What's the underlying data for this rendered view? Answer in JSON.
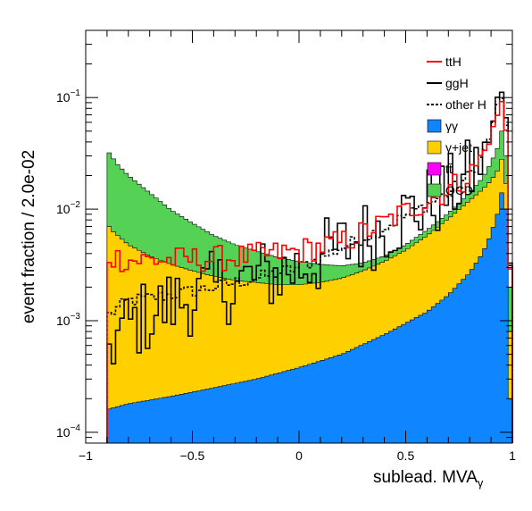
{
  "chart_data": {
    "type": "histogram",
    "xlabel": "sublead. MVA",
    "xlabel_subscript": "γ",
    "ylabel": "event fraction / 2.0e-02",
    "xlim": [
      -1.0,
      1.0
    ],
    "ylim": [
      8e-05,
      0.4
    ],
    "y_scale": "log",
    "x_ticks": [
      {
        "value": -1.0,
        "label": "−1"
      },
      {
        "value": -0.5,
        "label": "−0.5"
      },
      {
        "value": 0.0,
        "label": "0"
      },
      {
        "value": 0.5,
        "label": "0.5"
      },
      {
        "value": 1.0,
        "label": "1"
      }
    ],
    "y_ticks": [
      {
        "value": 0.0001,
        "mantissa": "10",
        "exp": "−4"
      },
      {
        "value": 0.001,
        "mantissa": "10",
        "exp": "−3"
      },
      {
        "value": 0.01,
        "mantissa": "10",
        "exp": "−2"
      },
      {
        "value": 0.1,
        "mantissa": "10",
        "exp": "−1"
      }
    ],
    "x_range": [
      -0.9,
      1.0
    ],
    "bin_width": 0.02,
    "stacked_knots": {
      "gg": [
        [
          -0.9,
          0.00016
        ],
        [
          -0.8,
          0.00018
        ],
        [
          -0.6,
          0.00021
        ],
        [
          -0.4,
          0.00025
        ],
        [
          -0.2,
          0.0003
        ],
        [
          0.0,
          0.00038
        ],
        [
          0.2,
          0.0005
        ],
        [
          0.4,
          0.00075
        ],
        [
          0.6,
          0.0012
        ],
        [
          0.7,
          0.0017
        ],
        [
          0.8,
          0.0027
        ],
        [
          0.86,
          0.004
        ],
        [
          0.9,
          0.006
        ],
        [
          0.93,
          0.009
        ],
        [
          0.95,
          0.014
        ],
        [
          0.97,
          0.01
        ],
        [
          0.99,
          0.0002
        ]
      ],
      "gjet": [
        [
          -0.9,
          0.0075
        ],
        [
          -0.88,
          0.0065
        ],
        [
          -0.8,
          0.0048
        ],
        [
          -0.7,
          0.0038
        ],
        [
          -0.6,
          0.0032
        ],
        [
          -0.5,
          0.0028
        ],
        [
          -0.4,
          0.0025
        ],
        [
          -0.3,
          0.0023
        ],
        [
          -0.2,
          0.0022
        ],
        [
          -0.1,
          0.0021
        ],
        [
          0.0,
          0.0021
        ],
        [
          0.1,
          0.0022
        ],
        [
          0.2,
          0.0024
        ],
        [
          0.3,
          0.0028
        ],
        [
          0.4,
          0.0034
        ],
        [
          0.5,
          0.0043
        ],
        [
          0.6,
          0.0058
        ],
        [
          0.7,
          0.0082
        ],
        [
          0.8,
          0.012
        ],
        [
          0.86,
          0.015
        ],
        [
          0.9,
          0.018
        ],
        [
          0.93,
          0.022
        ],
        [
          0.95,
          0.028
        ],
        [
          0.97,
          0.017
        ],
        [
          0.99,
          0.0008
        ]
      ],
      "tt": [
        [
          -0.9,
          0.0075
        ],
        [
          -0.88,
          0.0065
        ],
        [
          -0.8,
          0.0048
        ],
        [
          -0.7,
          0.0038
        ],
        [
          -0.6,
          0.0032
        ],
        [
          -0.5,
          0.0028
        ],
        [
          -0.4,
          0.0025
        ],
        [
          -0.3,
          0.0023
        ],
        [
          -0.2,
          0.0022
        ],
        [
          -0.1,
          0.0021
        ],
        [
          0.0,
          0.0021
        ],
        [
          0.1,
          0.0022
        ],
        [
          0.2,
          0.0024
        ],
        [
          0.3,
          0.0028
        ],
        [
          0.4,
          0.0034
        ],
        [
          0.5,
          0.0043
        ],
        [
          0.6,
          0.0058
        ],
        [
          0.7,
          0.0082
        ],
        [
          0.8,
          0.012
        ],
        [
          0.86,
          0.015
        ],
        [
          0.9,
          0.018
        ],
        [
          0.93,
          0.022
        ],
        [
          0.95,
          0.028
        ],
        [
          0.97,
          0.017
        ],
        [
          0.99,
          0.0008
        ]
      ],
      "qcd": [
        [
          -0.9,
          0.034
        ],
        [
          -0.88,
          0.03
        ],
        [
          -0.85,
          0.025
        ],
        [
          -0.8,
          0.02
        ],
        [
          -0.7,
          0.014
        ],
        [
          -0.6,
          0.0098
        ],
        [
          -0.5,
          0.0075
        ],
        [
          -0.4,
          0.0058
        ],
        [
          -0.3,
          0.0048
        ],
        [
          -0.2,
          0.0042
        ],
        [
          -0.1,
          0.0037
        ],
        [
          0.0,
          0.0034
        ],
        [
          0.1,
          0.0032
        ],
        [
          0.2,
          0.0031
        ],
        [
          0.3,
          0.0033
        ],
        [
          0.4,
          0.0038
        ],
        [
          0.5,
          0.0048
        ],
        [
          0.6,
          0.0065
        ],
        [
          0.7,
          0.0092
        ],
        [
          0.8,
          0.014
        ],
        [
          0.86,
          0.019
        ],
        [
          0.9,
          0.026
        ],
        [
          0.93,
          0.035
        ],
        [
          0.95,
          0.05
        ],
        [
          0.97,
          0.03
        ],
        [
          0.99,
          0.002
        ]
      ]
    },
    "line_knots": {
      "ttH": [
        [
          -0.9,
          0.0038
        ],
        [
          -0.8,
          0.0035
        ],
        [
          -0.6,
          0.0035
        ],
        [
          -0.4,
          0.0036
        ],
        [
          -0.2,
          0.0038
        ],
        [
          0.0,
          0.0042
        ],
        [
          0.2,
          0.005
        ],
        [
          0.4,
          0.0075
        ],
        [
          0.6,
          0.012
        ],
        [
          0.7,
          0.015
        ],
        [
          0.8,
          0.02
        ],
        [
          0.86,
          0.03
        ],
        [
          0.9,
          0.045
        ],
        [
          0.93,
          0.07
        ],
        [
          0.95,
          0.09
        ],
        [
          0.97,
          0.05
        ],
        [
          0.99,
          0.003
        ]
      ],
      "ggH": [
        [
          -0.9,
          0.0006
        ],
        [
          -0.8,
          0.0009
        ],
        [
          -0.6,
          0.0014
        ],
        [
          -0.4,
          0.0019
        ],
        [
          -0.2,
          0.0024
        ],
        [
          0.0,
          0.003
        ],
        [
          0.2,
          0.0045
        ],
        [
          0.4,
          0.007
        ],
        [
          0.6,
          0.011
        ],
        [
          0.7,
          0.014
        ],
        [
          0.8,
          0.02
        ],
        [
          0.86,
          0.03
        ],
        [
          0.9,
          0.05
        ],
        [
          0.93,
          0.09
        ],
        [
          0.95,
          0.11
        ],
        [
          0.97,
          0.06
        ],
        [
          0.99,
          0.003
        ]
      ],
      "otherH": [
        [
          -0.9,
          0.0011
        ],
        [
          -0.8,
          0.0015
        ],
        [
          -0.6,
          0.0017
        ],
        [
          -0.4,
          0.002
        ],
        [
          -0.2,
          0.0024
        ],
        [
          0.0,
          0.003
        ],
        [
          0.2,
          0.0045
        ],
        [
          0.4,
          0.0068
        ],
        [
          0.6,
          0.011
        ],
        [
          0.7,
          0.014
        ],
        [
          0.8,
          0.02
        ],
        [
          0.86,
          0.03
        ],
        [
          0.9,
          0.048
        ],
        [
          0.93,
          0.085
        ],
        [
          0.95,
          0.1
        ],
        [
          0.97,
          0.055
        ],
        [
          0.99,
          0.003
        ]
      ]
    },
    "line_noise": {
      "ttH": 0.12,
      "ggH": 0.35,
      "otherH": 0.06
    },
    "stack_order": [
      "qcd",
      "tt",
      "gjet",
      "gg"
    ],
    "series": [
      {
        "key": "ttH",
        "name": "ttH",
        "style": "line",
        "color": "#ff0000",
        "dash": ""
      },
      {
        "key": "ggH",
        "name": "ggH",
        "style": "line",
        "color": "#000000",
        "dash": ""
      },
      {
        "key": "otherH",
        "name": "other H",
        "style": "line",
        "color": "#000000",
        "dash": "3,2"
      },
      {
        "key": "gg",
        "name": "γγ",
        "style": "fill",
        "color": "#0f86ff"
      },
      {
        "key": "gjet",
        "name": "γ+jet",
        "style": "fill",
        "color": "#ffd000"
      },
      {
        "key": "tt",
        "name": "tt̄",
        "style": "fill",
        "color": "#ff00ff"
      },
      {
        "key": "qcd",
        "name": "QCD",
        "style": "fill",
        "color": "#55d155"
      }
    ]
  }
}
